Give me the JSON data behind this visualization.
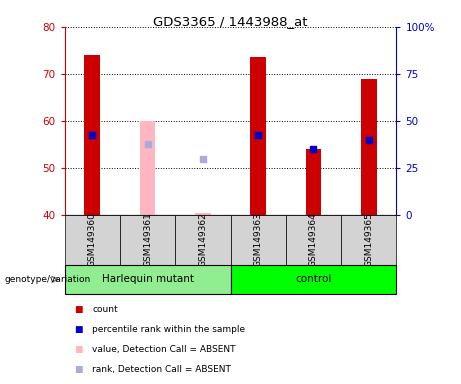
{
  "title": "GDS3365 / 1443988_at",
  "samples": [
    "GSM149360",
    "GSM149361",
    "GSM149362",
    "GSM149363",
    "GSM149364",
    "GSM149365"
  ],
  "ylim_left": [
    40,
    80
  ],
  "ylim_right": [
    0,
    100
  ],
  "yticks_left": [
    40,
    50,
    60,
    70,
    80
  ],
  "yticks_right": [
    0,
    25,
    50,
    75,
    100
  ],
  "red_bars": [
    74.0,
    null,
    null,
    73.5,
    54.0,
    69.0
  ],
  "blue_squares": [
    57.0,
    null,
    null,
    57.0,
    54.0,
    56.0
  ],
  "pink_bars": [
    null,
    60.0,
    40.5,
    null,
    null,
    null
  ],
  "lightblue_squares": [
    null,
    55.0,
    52.0,
    null,
    null,
    null
  ],
  "bar_bottom": 40,
  "bar_width": 0.28,
  "square_size": 18,
  "red_color": "#CC0000",
  "blue_color": "#0000CC",
  "pink_color": "#FFB6C1",
  "lightblue_color": "#AAAADD",
  "bg_plot": "#FFFFFF",
  "bg_label": "#D3D3D3",
  "harlequin_color": "#90EE90",
  "control_color": "#00FF00",
  "groups_info": [
    {
      "name": "Harlequin mutant",
      "start": 0,
      "end": 2,
      "color": "#90EE90"
    },
    {
      "name": "control",
      "start": 3,
      "end": 5,
      "color": "#00FF00"
    }
  ],
  "legend_labels": [
    "count",
    "percentile rank within the sample",
    "value, Detection Call = ABSENT",
    "rank, Detection Call = ABSENT"
  ],
  "legend_colors": [
    "#CC0000",
    "#0000CC",
    "#FFB6C1",
    "#AAAADD"
  ]
}
